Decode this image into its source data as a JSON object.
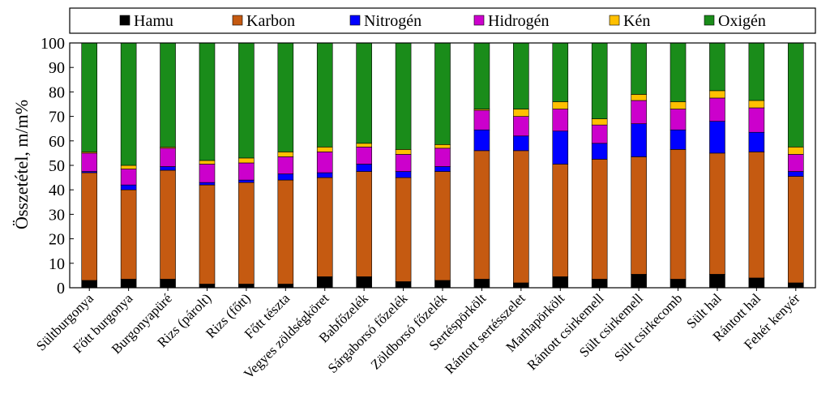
{
  "chart_data": {
    "type": "bar",
    "stacked": true,
    "ylabel": "Összetétel, m/m%",
    "xlabel": "",
    "ylim": [
      0,
      100
    ],
    "yticks": [
      0,
      10,
      20,
      30,
      40,
      50,
      60,
      70,
      80,
      90,
      100
    ],
    "grid": false,
    "legend_position": "top",
    "categories": [
      "Sültburgonya",
      "Főtt burgonya",
      "Burgonyapüré",
      "Rizs (párolt)",
      "Rizs (főtt)",
      "Főtt tészta",
      "Vegyes zöldségköret",
      "Babfőzelék",
      "Sárgaborsó főzelék",
      "Zöldborsó főzelék",
      "Sertéspörkölt",
      "Rántott sertésszelet",
      "Marhapörkölt",
      "Rántott csirkemell",
      "Sült csirkemell",
      "Sült csirkecomb",
      "Sült hal",
      "Rántott hal",
      "Fehér kenyér"
    ],
    "series": [
      {
        "name": "Hamu",
        "color": "#000000",
        "values": [
          3.0,
          3.5,
          3.5,
          1.5,
          1.5,
          1.5,
          4.5,
          4.5,
          2.5,
          3.0,
          3.5,
          2.0,
          4.5,
          3.5,
          5.5,
          3.5,
          5.5,
          4.0,
          2.0
        ]
      },
      {
        "name": "Karbon",
        "color": "#c55a11",
        "values": [
          44.0,
          36.5,
          44.5,
          40.5,
          41.5,
          42.5,
          40.5,
          43.0,
          42.5,
          44.5,
          52.5,
          54.0,
          46.0,
          49.0,
          48.0,
          53.0,
          49.5,
          51.5,
          43.5
        ]
      },
      {
        "name": "Nitrogén",
        "color": "#0000ff",
        "values": [
          0.5,
          2.0,
          1.5,
          1.0,
          1.0,
          2.5,
          2.0,
          3.0,
          2.5,
          2.0,
          8.5,
          6.0,
          13.5,
          6.5,
          13.5,
          8.0,
          13.0,
          8.0,
          2.0
        ]
      },
      {
        "name": "Hidrogén",
        "color": "#cc00cc",
        "values": [
          7.5,
          6.5,
          7.5,
          7.5,
          7.0,
          7.0,
          8.5,
          7.0,
          7.0,
          7.5,
          8.0,
          8.0,
          9.0,
          7.5,
          9.5,
          8.5,
          9.5,
          10.0,
          7.0
        ]
      },
      {
        "name": "Kén",
        "color": "#ffc000",
        "values": [
          0.5,
          1.5,
          0.5,
          1.5,
          2.0,
          2.0,
          2.0,
          1.5,
          2.0,
          1.5,
          0.5,
          3.0,
          3.0,
          2.5,
          2.5,
          3.0,
          3.0,
          3.0,
          3.0
        ]
      },
      {
        "name": "Oxigén",
        "color": "#1a8c1a",
        "values": [
          44.5,
          50.0,
          42.5,
          48.0,
          47.0,
          44.5,
          42.5,
          41.0,
          43.5,
          41.5,
          27.0,
          27.0,
          24.0,
          31.0,
          21.0,
          24.0,
          19.5,
          23.5,
          42.5
        ]
      }
    ]
  }
}
